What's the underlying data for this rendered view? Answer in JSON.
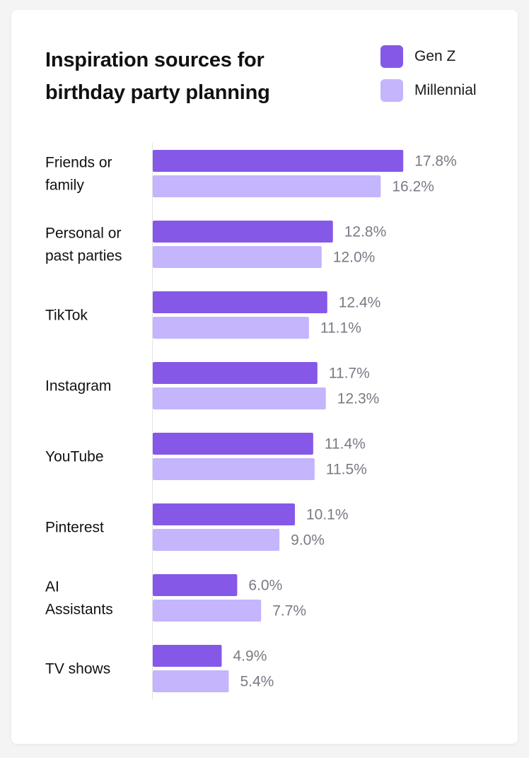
{
  "chart_data": {
    "type": "bar",
    "orientation": "horizontal",
    "title": "Inspiration sources for birthday party planning",
    "categories": [
      "Friends or family",
      "Personal or past parties",
      "TikTok",
      "Instagram",
      "YouTube",
      "Pinterest",
      "AI Assistants",
      "TV shows"
    ],
    "category_lines": [
      [
        "Friends or",
        "family"
      ],
      [
        "Personal or",
        "past parties"
      ],
      [
        "TikTok"
      ],
      [
        "Instagram"
      ],
      [
        "YouTube"
      ],
      [
        "Pinterest"
      ],
      [
        "AI",
        "Assistants"
      ],
      [
        "TV shows"
      ]
    ],
    "series": [
      {
        "name": "Gen Z",
        "color": "#8558e8",
        "values": [
          17.8,
          12.8,
          12.4,
          11.7,
          11.4,
          10.1,
          6.0,
          4.9
        ],
        "labels": [
          "17.8%",
          "12.8%",
          "12.4%",
          "11.7%",
          "11.4%",
          "10.1%",
          "6.0%",
          "4.9%"
        ]
      },
      {
        "name": "Millennial",
        "color": "#c4b5fd",
        "values": [
          16.2,
          12.0,
          11.1,
          12.3,
          11.5,
          9.0,
          7.7,
          5.4
        ],
        "labels": [
          "16.2%",
          "12.0%",
          "11.1%",
          "12.3%",
          "11.5%",
          "9.0%",
          "7.7%",
          "5.4%"
        ]
      }
    ],
    "grid": false,
    "legend": "top-right"
  }
}
